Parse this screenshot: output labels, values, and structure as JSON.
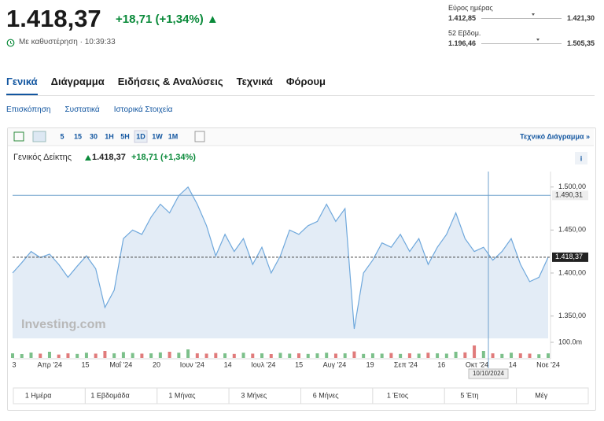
{
  "header": {
    "price": "1.418,37",
    "change": "+18,71 (+1,34%)",
    "status": "Με καθυστέρηση · 10:39:33"
  },
  "ranges": [
    {
      "label": "Εύρος ημέρας",
      "low": "1.412,85",
      "high": "1.421,30"
    },
    {
      "label": "52 Εβδομ.",
      "low": "1.196,46",
      "high": "1.505,35"
    }
  ],
  "tabs": [
    "Γενικά",
    "Διάγραμμα",
    "Ειδήσεις & Αναλύσεις",
    "Τεχνικά",
    "Φόρουμ"
  ],
  "subtabs": [
    "Επισκόπηση",
    "Συστατικά",
    "Ιστορικά Στοιχεία"
  ],
  "intervals": [
    "5",
    "15",
    "30",
    "1H",
    "5H",
    "1D",
    "1W",
    "1M"
  ],
  "technical_link": "Τεχνικό Διάγραμμα »",
  "chart_data": {
    "type": "line",
    "title": "Γενικός Δείκτης",
    "last": "1.418,37",
    "change": "+18,71 (+1,34%)",
    "watermark": "Investing.com",
    "color": "#6fa8dc",
    "x_labels": [
      "3",
      "Απρ '24",
      "15",
      "Μαΐ '24",
      "20",
      "Ιουν '24",
      "14",
      "Ιουλ '24",
      "15",
      "Αυγ '24",
      "19",
      "Σεπ '24",
      "16",
      "Οκτ '24",
      "14",
      "Νοε '24"
    ],
    "values": [
      1400,
      1412,
      1425,
      1418,
      1422,
      1410,
      1395,
      1408,
      1420,
      1405,
      1360,
      1380,
      1440,
      1450,
      1445,
      1465,
      1480,
      1470,
      1490,
      1500,
      1480,
      1455,
      1420,
      1445,
      1425,
      1440,
      1410,
      1430,
      1400,
      1420,
      1450,
      1445,
      1455,
      1460,
      1480,
      1460,
      1475,
      1335,
      1400,
      1415,
      1435,
      1430,
      1445,
      1425,
      1440,
      1410,
      1430,
      1445,
      1470,
      1440,
      1425,
      1430,
      1415,
      1425,
      1440,
      1410,
      1390,
      1395,
      1418.37
    ],
    "ylim": [
      1324,
      1518
    ],
    "yticks": [
      {
        "value": 1500,
        "label": "1.500,00"
      },
      {
        "value": 1450,
        "label": "1.450,00"
      },
      {
        "value": 1400,
        "label": "1.400,00"
      },
      {
        "value": 1350,
        "label": "1.350,00"
      }
    ],
    "lines": [
      {
        "value": 1490.31,
        "label": "1.490,31"
      },
      {
        "value": 1418.37,
        "label": "1.418,37"
      }
    ],
    "volume": {
      "values": [
        30,
        25,
        35,
        28,
        40,
        22,
        30,
        26,
        34,
        28,
        45,
        30,
        38,
        32,
        28,
        30,
        36,
        40,
        34,
        55,
        30,
        28,
        32,
        30,
        26,
        34,
        28,
        30,
        25,
        33,
        28,
        30,
        26,
        30,
        34,
        28,
        30,
        42,
        26,
        30,
        28,
        32,
        26,
        30,
        28,
        34,
        30,
        28,
        40,
        36,
        80,
        45,
        30,
        26,
        34,
        30,
        28,
        24,
        30
      ],
      "ylim": [
        0,
        115
      ],
      "yticks": [
        {
          "value": 100,
          "label": "100.0m"
        }
      ]
    },
    "crosshair_label": "10/10/2024"
  },
  "range_buttons": [
    "1 Ημέρα",
    "1 Εβδομάδα",
    "1 Μήνας",
    "3 Μήνες",
    "6 Μήνες",
    "1 Έτος",
    "5 Έτη",
    "Μέγ"
  ]
}
